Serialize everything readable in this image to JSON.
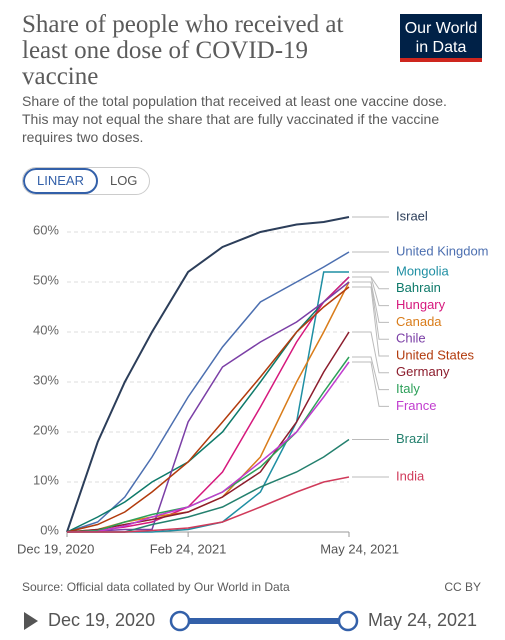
{
  "chart_data": {
    "type": "line",
    "title": "Share of people who received at least one dose of COVID-19 vaccine",
    "subtitle": "Share of the total population that received at least one vaccine dose. This may not equal the share that are fully vaccinated if the vaccine requires two doses.",
    "x": [
      "2020-12-19",
      "2021-01-05",
      "2021-01-20",
      "2021-02-04",
      "2021-02-24",
      "2021-03-15",
      "2021-04-05",
      "2021-04-25",
      "2021-05-10",
      "2021-05-24"
    ],
    "series": [
      {
        "name": "Israel",
        "color": "#2c3e5a",
        "values": [
          0,
          18,
          30,
          40,
          52,
          57,
          60,
          61.5,
          62,
          63
        ]
      },
      {
        "name": "United Kingdom",
        "color": "#4c6fb0",
        "values": [
          0,
          2,
          7,
          15,
          27,
          37,
          46,
          50,
          53,
          56
        ]
      },
      {
        "name": "Mongolia",
        "color": "#1f8fa3",
        "values": [
          0,
          0,
          0,
          0,
          0.5,
          2,
          8,
          22,
          52,
          52
        ]
      },
      {
        "name": "Bahrain",
        "color": "#0e7a6a",
        "values": [
          0,
          3,
          6,
          10,
          14,
          20,
          30,
          40,
          46,
          51
        ]
      },
      {
        "name": "Hungary",
        "color": "#d6197d",
        "values": [
          0,
          0.3,
          1,
          2,
          5,
          12,
          25,
          38,
          46,
          51
        ]
      },
      {
        "name": "Canada",
        "color": "#d97c1a",
        "values": [
          0,
          0.5,
          2,
          3,
          4,
          7,
          15,
          30,
          40,
          50
        ]
      },
      {
        "name": "Chile",
        "color": "#7b3fa6",
        "values": [
          0,
          0.2,
          0.5,
          0.5,
          22,
          33,
          38,
          42,
          46,
          50
        ]
      },
      {
        "name": "United States",
        "color": "#b23b0d",
        "values": [
          0,
          1.5,
          4,
          8,
          14,
          22,
          31,
          40,
          45,
          49
        ]
      },
      {
        "name": "Germany",
        "color": "#8c1d2d",
        "values": [
          0,
          0.5,
          1.5,
          2.5,
          4,
          7,
          12,
          22,
          32,
          40
        ]
      },
      {
        "name": "Italy",
        "color": "#2ea05a",
        "values": [
          0,
          0.3,
          2,
          3.5,
          5,
          8,
          13,
          20,
          28,
          35
        ]
      },
      {
        "name": "France",
        "color": "#c13ccf",
        "values": [
          0,
          0.1,
          1.2,
          3,
          5,
          8,
          14,
          20,
          27,
          34
        ]
      },
      {
        "name": "Brazil",
        "color": "#24806e",
        "values": [
          0,
          0,
          0,
          1.5,
          3,
          5,
          9,
          12,
          15,
          18.5
        ]
      },
      {
        "name": "India",
        "color": "#d03a5a",
        "values": [
          0,
          0,
          0,
          0.3,
          0.8,
          2,
          5,
          8,
          10,
          11
        ]
      }
    ],
    "xlim": [
      "2020-12-19",
      "2021-05-24"
    ],
    "xticks": [
      {
        "value": "2020-12-19",
        "label": "Dec 19, 2020"
      },
      {
        "value": "2021-02-24",
        "label": "Feb 24, 2021"
      },
      {
        "value": "2021-05-24",
        "label": "May 24, 2021"
      }
    ],
    "ylim": [
      0,
      63
    ],
    "yticks": [
      {
        "value": 0,
        "label": "0%"
      },
      {
        "value": 10,
        "label": "10%"
      },
      {
        "value": 20,
        "label": "20%"
      },
      {
        "value": 30,
        "label": "30%"
      },
      {
        "value": 40,
        "label": "40%"
      },
      {
        "value": 50,
        "label": "50%"
      },
      {
        "value": 60,
        "label": "60%"
      }
    ],
    "grid": true
  },
  "logo": [
    "Our World",
    "in Data"
  ],
  "toggle": [
    "LINEAR",
    "LOG"
  ],
  "source": "Source: Official data collated by Our World in Data",
  "license": "CC BY",
  "timeline": {
    "start": "Dec 19, 2020",
    "end": "May 24, 2021"
  }
}
